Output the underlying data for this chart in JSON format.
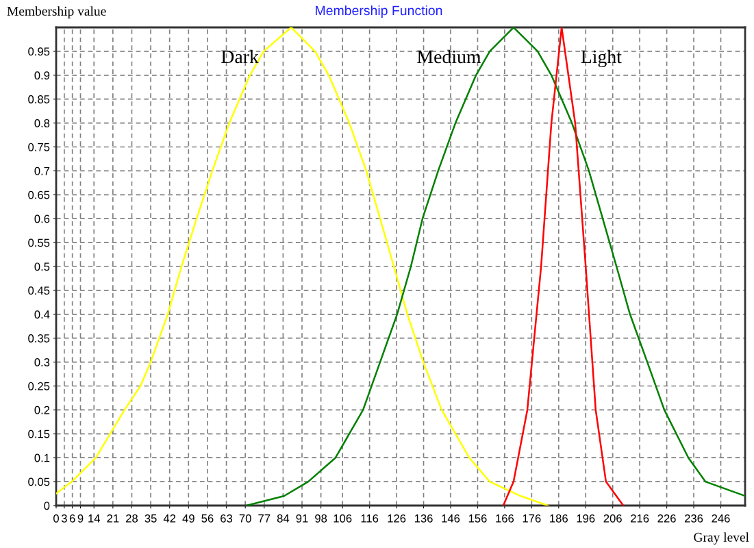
{
  "chart_data": {
    "type": "line",
    "title": "Membership Function",
    "xlabel": "Gray level",
    "ylabel": "Membership value",
    "xlim": [
      0,
      255
    ],
    "ylim": [
      0,
      1
    ],
    "xticks": [
      0,
      3,
      6,
      9,
      14,
      21,
      28,
      35,
      42,
      49,
      56,
      63,
      70,
      77,
      84,
      91,
      98,
      106,
      116,
      126,
      136,
      146,
      156,
      166,
      176,
      186,
      196,
      206,
      216,
      226,
      236,
      246
    ],
    "yticks": [
      0,
      0.05,
      0.1,
      0.15,
      0.2,
      0.25,
      0.3,
      0.35,
      0.4,
      0.45,
      0.5,
      0.55,
      0.6,
      0.65,
      0.7,
      0.75,
      0.8,
      0.85,
      0.9,
      0.95
    ],
    "grid": true,
    "line_style": "solid",
    "marker": "none",
    "series": [
      {
        "name": "Dark",
        "color": "#ffff00",
        "x": [
          0,
          5.8,
          14.7,
          25.3,
          31.2,
          35,
          41.3,
          46.4,
          52,
          57.8,
          64.1,
          71.7,
          76.8,
          87,
          95.8,
          100.9,
          108.5,
          114.8,
          119.9,
          125,
          130,
          135.9,
          142.7,
          152.9,
          160.5,
          171.9,
          182
        ],
        "values": [
          0.025,
          0.05,
          0.1,
          0.2,
          0.25,
          0.3,
          0.4,
          0.5,
          0.6,
          0.7,
          0.8,
          0.9,
          0.95,
          1.0,
          0.95,
          0.9,
          0.8,
          0.7,
          0.6,
          0.5,
          0.4,
          0.3,
          0.2,
          0.1,
          0.05,
          0.02,
          0
        ]
      },
      {
        "name": "Medium",
        "color": "#008000",
        "x": [
          70.5,
          84.4,
          93.3,
          103.4,
          113.6,
          119.9,
          126.2,
          131.3,
          135.6,
          141.4,
          147.8,
          155.4,
          160.5,
          169.3,
          178.2,
          183.3,
          190.9,
          197.2,
          202.3,
          207.4,
          212.4,
          218.8,
          225.1,
          234,
          240.3,
          255
        ],
        "values": [
          0,
          0.02,
          0.05,
          0.1,
          0.2,
          0.3,
          0.4,
          0.5,
          0.6,
          0.7,
          0.8,
          0.9,
          0.95,
          1.0,
          0.95,
          0.9,
          0.8,
          0.7,
          0.6,
          0.5,
          0.4,
          0.3,
          0.2,
          0.1,
          0.05,
          0.02
        ]
      },
      {
        "name": "Light",
        "color": "#ff0000",
        "x": [
          165.5,
          169.3,
          174.4,
          179.5,
          183.3,
          187.1,
          192.1,
          196,
          199.7,
          203.5,
          209.9
        ],
        "values": [
          0,
          0.05,
          0.2,
          0.5,
          0.8,
          1.0,
          0.8,
          0.5,
          0.2,
          0.05,
          0
        ]
      }
    ]
  }
}
